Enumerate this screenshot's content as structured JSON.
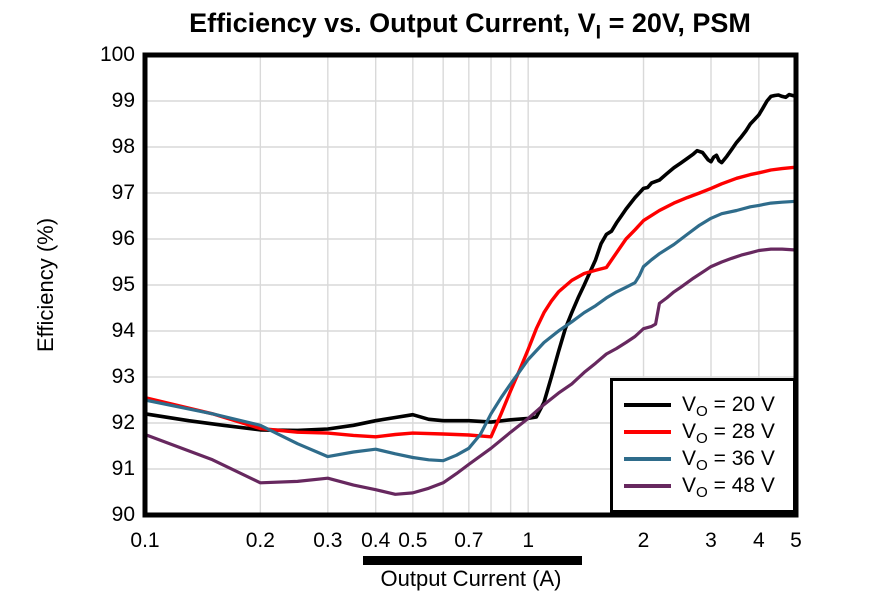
{
  "title_parts": {
    "main": "Efficiency vs. Output Current, V",
    "sub": "I",
    "rest": " = 20V, PSM"
  },
  "chart_data": {
    "type": "line",
    "title": "Efficiency vs. Output Current, VI = 20V, PSM",
    "xlabel": "Output Current (A)",
    "ylabel": "Efficiency (%)",
    "x_scale": "log",
    "xlim": [
      0.1,
      5
    ],
    "ylim": [
      90,
      100
    ],
    "grid": true,
    "grid_color": "#d9d9d9",
    "border_color": "#000000",
    "legend_position": "bottom-right",
    "x_ticks": [
      {
        "value": 0.1,
        "label": "0.1"
      },
      {
        "value": 0.2,
        "label": "0.2"
      },
      {
        "value": 0.3,
        "label": "0.3"
      },
      {
        "value": 0.4,
        "label": "0.4"
      },
      {
        "value": 0.5,
        "label": "0.5"
      },
      {
        "value": 0.7,
        "label": "0.7"
      },
      {
        "value": 1,
        "label": "1"
      },
      {
        "value": 2,
        "label": "2"
      },
      {
        "value": 3,
        "label": "3"
      },
      {
        "value": 4,
        "label": "4"
      },
      {
        "value": 5,
        "label": "5"
      }
    ],
    "x_gridlines": [
      0.2,
      0.3,
      0.4,
      0.5,
      0.6,
      0.7,
      0.8,
      0.9,
      1,
      2,
      3,
      4
    ],
    "y_ticks": [
      100,
      99,
      98,
      97,
      96,
      95,
      94,
      93,
      92,
      91,
      90
    ],
    "y_gridlines": [
      91,
      92,
      93,
      94,
      95,
      96,
      97,
      98,
      99
    ],
    "series": [
      {
        "id": "vo-20v",
        "name": "VO = 20 V",
        "label": {
          "base": "V",
          "sub": "O",
          "rest": " = 20 V"
        },
        "color": "#000000",
        "width": 3.6,
        "points": [
          [
            0.1,
            92.2
          ],
          [
            0.13,
            92.05
          ],
          [
            0.16,
            91.95
          ],
          [
            0.2,
            91.85
          ],
          [
            0.25,
            91.84
          ],
          [
            0.3,
            91.87
          ],
          [
            0.35,
            91.95
          ],
          [
            0.4,
            92.05
          ],
          [
            0.45,
            92.12
          ],
          [
            0.5,
            92.18
          ],
          [
            0.55,
            92.08
          ],
          [
            0.6,
            92.05
          ],
          [
            0.7,
            92.05
          ],
          [
            0.8,
            92.02
          ],
          [
            0.9,
            92.07
          ],
          [
            1.0,
            92.1
          ],
          [
            1.05,
            92.13
          ],
          [
            1.1,
            92.45
          ],
          [
            1.15,
            93.0
          ],
          [
            1.2,
            93.55
          ],
          [
            1.25,
            94.05
          ],
          [
            1.3,
            94.4
          ],
          [
            1.35,
            94.72
          ],
          [
            1.4,
            95.0
          ],
          [
            1.45,
            95.28
          ],
          [
            1.5,
            95.55
          ],
          [
            1.55,
            95.9
          ],
          [
            1.6,
            96.1
          ],
          [
            1.65,
            96.17
          ],
          [
            1.7,
            96.35
          ],
          [
            1.75,
            96.5
          ],
          [
            1.8,
            96.65
          ],
          [
            1.9,
            96.9
          ],
          [
            2.0,
            97.1
          ],
          [
            2.05,
            97.12
          ],
          [
            2.1,
            97.22
          ],
          [
            2.2,
            97.28
          ],
          [
            2.3,
            97.42
          ],
          [
            2.4,
            97.55
          ],
          [
            2.5,
            97.65
          ],
          [
            2.6,
            97.75
          ],
          [
            2.7,
            97.85
          ],
          [
            2.76,
            97.92
          ],
          [
            2.85,
            97.88
          ],
          [
            2.95,
            97.72
          ],
          [
            3.0,
            97.68
          ],
          [
            3.05,
            97.78
          ],
          [
            3.1,
            97.82
          ],
          [
            3.15,
            97.7
          ],
          [
            3.2,
            97.66
          ],
          [
            3.3,
            97.8
          ],
          [
            3.4,
            97.95
          ],
          [
            3.5,
            98.1
          ],
          [
            3.6,
            98.22
          ],
          [
            3.7,
            98.35
          ],
          [
            3.8,
            98.5
          ],
          [
            3.9,
            98.6
          ],
          [
            4.0,
            98.7
          ],
          [
            4.1,
            98.85
          ],
          [
            4.2,
            99.0
          ],
          [
            4.3,
            99.1
          ],
          [
            4.4,
            99.12
          ],
          [
            4.5,
            99.13
          ],
          [
            4.6,
            99.1
          ],
          [
            4.7,
            99.08
          ],
          [
            4.8,
            99.14
          ],
          [
            4.9,
            99.12
          ],
          [
            5.0,
            99.1
          ]
        ]
      },
      {
        "id": "vo-28v",
        "name": "VO = 28 V",
        "label": {
          "base": "V",
          "sub": "O",
          "rest": " = 28 V"
        },
        "color": "#fe0000",
        "width": 3.4,
        "points": [
          [
            0.1,
            92.55
          ],
          [
            0.15,
            92.2
          ],
          [
            0.2,
            91.88
          ],
          [
            0.25,
            91.8
          ],
          [
            0.3,
            91.78
          ],
          [
            0.35,
            91.73
          ],
          [
            0.4,
            91.7
          ],
          [
            0.45,
            91.75
          ],
          [
            0.5,
            91.78
          ],
          [
            0.6,
            91.76
          ],
          [
            0.7,
            91.74
          ],
          [
            0.75,
            91.72
          ],
          [
            0.8,
            91.7
          ],
          [
            0.85,
            92.2
          ],
          [
            0.9,
            92.7
          ],
          [
            0.95,
            93.15
          ],
          [
            1.0,
            93.6
          ],
          [
            1.05,
            94.05
          ],
          [
            1.1,
            94.4
          ],
          [
            1.15,
            94.65
          ],
          [
            1.2,
            94.85
          ],
          [
            1.3,
            95.1
          ],
          [
            1.4,
            95.25
          ],
          [
            1.5,
            95.32
          ],
          [
            1.6,
            95.38
          ],
          [
            1.7,
            95.7
          ],
          [
            1.8,
            96.0
          ],
          [
            1.9,
            96.2
          ],
          [
            2.0,
            96.4
          ],
          [
            2.2,
            96.62
          ],
          [
            2.4,
            96.78
          ],
          [
            2.6,
            96.9
          ],
          [
            2.8,
            97.0
          ],
          [
            3.0,
            97.1
          ],
          [
            3.2,
            97.2
          ],
          [
            3.5,
            97.32
          ],
          [
            3.8,
            97.4
          ],
          [
            4.0,
            97.44
          ],
          [
            4.3,
            97.5
          ],
          [
            4.6,
            97.53
          ],
          [
            5.0,
            97.56
          ]
        ]
      },
      {
        "id": "vo-36v",
        "name": "VO = 36 V",
        "label": {
          "base": "V",
          "sub": "O",
          "rest": " = 36 V"
        },
        "color": "#2f6c8b",
        "width": 3.2,
        "points": [
          [
            0.1,
            92.5
          ],
          [
            0.15,
            92.2
          ],
          [
            0.2,
            91.95
          ],
          [
            0.25,
            91.55
          ],
          [
            0.3,
            91.27
          ],
          [
            0.35,
            91.37
          ],
          [
            0.4,
            91.43
          ],
          [
            0.45,
            91.33
          ],
          [
            0.5,
            91.25
          ],
          [
            0.55,
            91.2
          ],
          [
            0.6,
            91.18
          ],
          [
            0.65,
            91.3
          ],
          [
            0.7,
            91.45
          ],
          [
            0.75,
            91.75
          ],
          [
            0.8,
            92.2
          ],
          [
            0.85,
            92.55
          ],
          [
            0.9,
            92.85
          ],
          [
            0.95,
            93.12
          ],
          [
            1.0,
            93.38
          ],
          [
            1.1,
            93.75
          ],
          [
            1.2,
            94.0
          ],
          [
            1.3,
            94.2
          ],
          [
            1.4,
            94.4
          ],
          [
            1.5,
            94.55
          ],
          [
            1.6,
            94.72
          ],
          [
            1.7,
            94.85
          ],
          [
            1.8,
            94.95
          ],
          [
            1.9,
            95.05
          ],
          [
            1.95,
            95.2
          ],
          [
            2.0,
            95.4
          ],
          [
            2.1,
            95.55
          ],
          [
            2.2,
            95.68
          ],
          [
            2.4,
            95.88
          ],
          [
            2.6,
            96.1
          ],
          [
            2.8,
            96.3
          ],
          [
            3.0,
            96.45
          ],
          [
            3.2,
            96.55
          ],
          [
            3.5,
            96.62
          ],
          [
            3.8,
            96.7
          ],
          [
            4.0,
            96.73
          ],
          [
            4.3,
            96.78
          ],
          [
            4.6,
            96.8
          ],
          [
            5.0,
            96.82
          ]
        ]
      },
      {
        "id": "vo-48v",
        "name": "VO = 48 V",
        "label": {
          "base": "V",
          "sub": "O",
          "rest": " = 48 V"
        },
        "color": "#67285f",
        "width": 3.2,
        "points": [
          [
            0.1,
            91.75
          ],
          [
            0.15,
            91.2
          ],
          [
            0.2,
            90.7
          ],
          [
            0.25,
            90.73
          ],
          [
            0.3,
            90.8
          ],
          [
            0.35,
            90.65
          ],
          [
            0.4,
            90.55
          ],
          [
            0.45,
            90.45
          ],
          [
            0.5,
            90.48
          ],
          [
            0.55,
            90.58
          ],
          [
            0.6,
            90.7
          ],
          [
            0.65,
            90.9
          ],
          [
            0.7,
            91.1
          ],
          [
            0.8,
            91.45
          ],
          [
            0.9,
            91.8
          ],
          [
            1.0,
            92.1
          ],
          [
            1.1,
            92.4
          ],
          [
            1.2,
            92.65
          ],
          [
            1.3,
            92.85
          ],
          [
            1.4,
            93.1
          ],
          [
            1.5,
            93.3
          ],
          [
            1.6,
            93.5
          ],
          [
            1.7,
            93.62
          ],
          [
            1.8,
            93.75
          ],
          [
            1.9,
            93.88
          ],
          [
            2.0,
            94.05
          ],
          [
            2.1,
            94.1
          ],
          [
            2.15,
            94.15
          ],
          [
            2.2,
            94.6
          ],
          [
            2.3,
            94.72
          ],
          [
            2.4,
            94.85
          ],
          [
            2.5,
            94.95
          ],
          [
            2.7,
            95.15
          ],
          [
            2.9,
            95.32
          ],
          [
            3.0,
            95.4
          ],
          [
            3.2,
            95.5
          ],
          [
            3.4,
            95.58
          ],
          [
            3.6,
            95.65
          ],
          [
            3.8,
            95.7
          ],
          [
            4.0,
            95.75
          ],
          [
            4.3,
            95.78
          ],
          [
            4.6,
            95.78
          ],
          [
            5.0,
            95.76
          ]
        ]
      }
    ]
  }
}
